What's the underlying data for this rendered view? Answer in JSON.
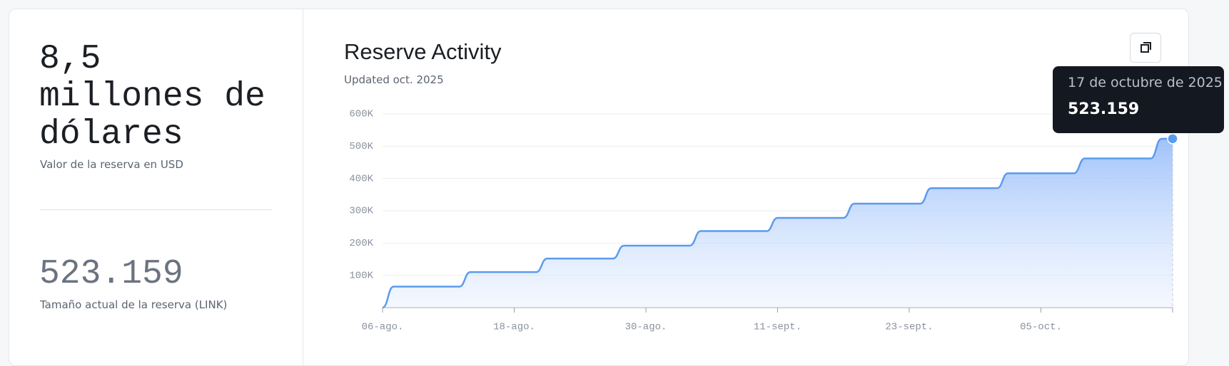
{
  "left": {
    "usd_value": "8,5 millones de dólares",
    "usd_caption": "Valor de la reserva en USD",
    "link_value": "523.159",
    "link_caption": "Tamaño actual de la reserva (LINK)"
  },
  "chart_data": {
    "type": "area",
    "title": "Reserve Activity",
    "subtitle": "Updated oct. 2025",
    "x": [
      "2025-08-06",
      "2025-08-07",
      "2025-08-13",
      "2025-08-14",
      "2025-08-20",
      "2025-08-21",
      "2025-08-27",
      "2025-08-28",
      "2025-09-03",
      "2025-09-04",
      "2025-09-10",
      "2025-09-11",
      "2025-09-17",
      "2025-09-18",
      "2025-09-24",
      "2025-09-25",
      "2025-10-01",
      "2025-10-02",
      "2025-10-08",
      "2025-10-09",
      "2025-10-15",
      "2025-10-16",
      "2025-10-17"
    ],
    "values": [
      0,
      65000,
      65000,
      110000,
      110000,
      152000,
      152000,
      192000,
      192000,
      237000,
      237000,
      278000,
      278000,
      322000,
      322000,
      370000,
      370000,
      416000,
      416000,
      462000,
      462000,
      523159,
      523159
    ],
    "color": "#5b9bef",
    "xlim": [
      "2025-08-06",
      "2025-10-17"
    ],
    "xticks": [
      {
        "value": "2025-08-06",
        "label": "06-ago."
      },
      {
        "value": "2025-08-18",
        "label": "18-ago."
      },
      {
        "value": "2025-08-30",
        "label": "30-ago."
      },
      {
        "value": "2025-09-11",
        "label": "11-sept."
      },
      {
        "value": "2025-09-23",
        "label": "23-sept."
      },
      {
        "value": "2025-10-05",
        "label": "05-oct."
      },
      {
        "value": "2025-10-17",
        "label": ""
      }
    ],
    "ylim": [
      0,
      600000
    ],
    "yticks": [
      {
        "value": 100000,
        "label": "100K"
      },
      {
        "value": 200000,
        "label": "200K"
      },
      {
        "value": 300000,
        "label": "300K"
      },
      {
        "value": 400000,
        "label": "400K"
      },
      {
        "value": 500000,
        "label": "500K"
      },
      {
        "value": 600000,
        "label": "600K"
      }
    ],
    "grid": true,
    "tooltip": {
      "label": "17 de octubre de 2025",
      "value_label": "523.159"
    }
  }
}
